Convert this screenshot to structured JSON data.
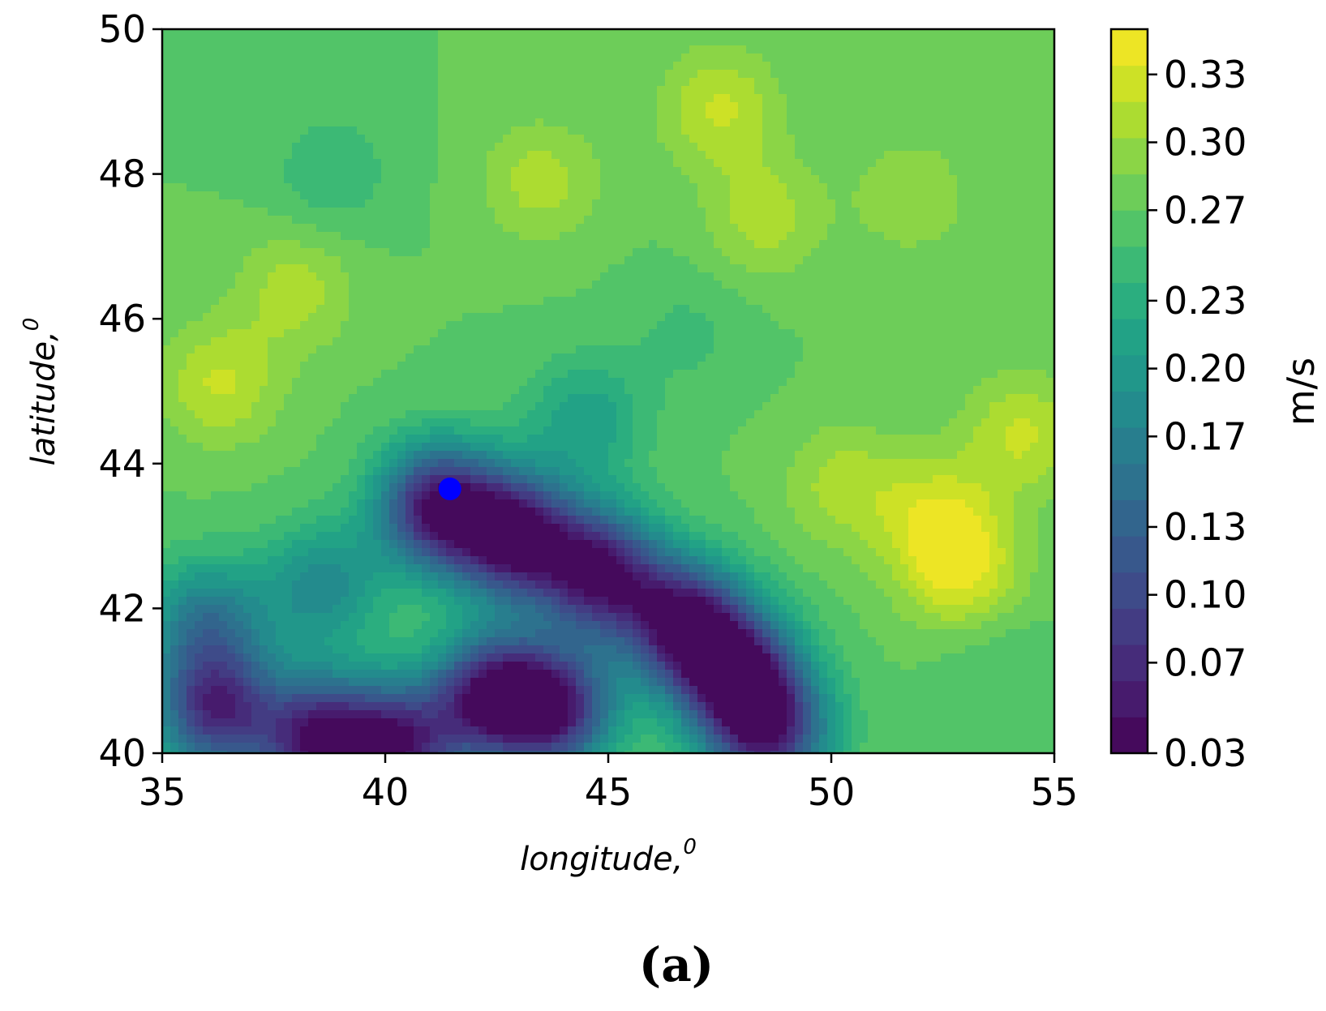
{
  "chart_data": {
    "type": "heatmap",
    "subtype": "filled-contour",
    "xlabel": "longitude,",
    "xlabel_superscript": "0",
    "ylabel": "latitude,",
    "ylabel_superscript": "0",
    "xlim": [
      35,
      55
    ],
    "ylim": [
      40,
      50
    ],
    "xticks": [
      "35",
      "40",
      "45",
      "50",
      "55"
    ],
    "yticks": [
      "40",
      "42",
      "44",
      "46",
      "48",
      "50"
    ],
    "colormap": "viridis",
    "colorbar": {
      "label": "m/s",
      "range": [
        0.03,
        0.35
      ],
      "ticks": [
        "0.03",
        "0.07",
        "0.10",
        "0.13",
        "0.17",
        "0.20",
        "0.23",
        "0.27",
        "0.30",
        "0.33"
      ],
      "tick_values": [
        0.03,
        0.07,
        0.1,
        0.13,
        0.17,
        0.2,
        0.23,
        0.27,
        0.3,
        0.33
      ],
      "levels": 20
    },
    "background_value": 0.27,
    "features": [
      {
        "kind": "high",
        "lon": 47.5,
        "lat": 48.9,
        "value": 0.32
      },
      {
        "kind": "high",
        "lon": 43.5,
        "lat": 47.9,
        "value": 0.31
      },
      {
        "kind": "high",
        "lon": 48.5,
        "lat": 47.4,
        "value": 0.31
      },
      {
        "kind": "high",
        "lon": 51.8,
        "lat": 47.7,
        "value": 0.3
      },
      {
        "kind": "high",
        "lon": 36.3,
        "lat": 45.1,
        "value": 0.32
      },
      {
        "kind": "high",
        "lon": 38.0,
        "lat": 46.4,
        "value": 0.31
      },
      {
        "kind": "high",
        "lon": 50.3,
        "lat": 43.7,
        "value": 0.31
      },
      {
        "kind": "high",
        "lon": 52.4,
        "lat": 43.2,
        "value": 0.33
      },
      {
        "kind": "high",
        "lon": 53.0,
        "lat": 42.4,
        "value": 0.33
      },
      {
        "kind": "high",
        "lon": 54.3,
        "lat": 44.4,
        "value": 0.32
      },
      {
        "kind": "low",
        "lon": 41.2,
        "lat": 43.4,
        "value": 0.05
      },
      {
        "kind": "low",
        "lon": 42.9,
        "lat": 43.0,
        "value": 0.04
      },
      {
        "kind": "low",
        "lon": 44.8,
        "lat": 42.5,
        "value": 0.05
      },
      {
        "kind": "low",
        "lon": 46.7,
        "lat": 41.8,
        "value": 0.05
      },
      {
        "kind": "low",
        "lon": 47.9,
        "lat": 41.1,
        "value": 0.06
      },
      {
        "kind": "low",
        "lon": 48.6,
        "lat": 40.3,
        "value": 0.08
      },
      {
        "kind": "low",
        "lon": 42.4,
        "lat": 40.8,
        "value": 0.06
      },
      {
        "kind": "low",
        "lon": 43.8,
        "lat": 40.6,
        "value": 0.07
      },
      {
        "kind": "low",
        "lon": 36.2,
        "lat": 40.6,
        "value": 0.08
      },
      {
        "kind": "low",
        "lon": 38.5,
        "lat": 40.2,
        "value": 0.06
      },
      {
        "kind": "low",
        "lon": 40.3,
        "lat": 40.1,
        "value": 0.07
      },
      {
        "kind": "mid",
        "lon": 38.6,
        "lat": 42.3,
        "value": 0.18
      },
      {
        "kind": "mid",
        "lon": 36.0,
        "lat": 41.8,
        "value": 0.16
      },
      {
        "kind": "mid",
        "lon": 44.5,
        "lat": 44.6,
        "value": 0.21
      },
      {
        "kind": "mid",
        "lon": 38.8,
        "lat": 48.0,
        "value": 0.24
      },
      {
        "kind": "mid",
        "lon": 46.8,
        "lat": 45.8,
        "value": 0.25
      },
      {
        "kind": "mid",
        "lon": 53.5,
        "lat": 41.5,
        "value": 0.25
      }
    ],
    "marker": {
      "lon": 41.45,
      "lat": 43.65,
      "color": "#0000ff"
    }
  },
  "panel_label": "(a)"
}
